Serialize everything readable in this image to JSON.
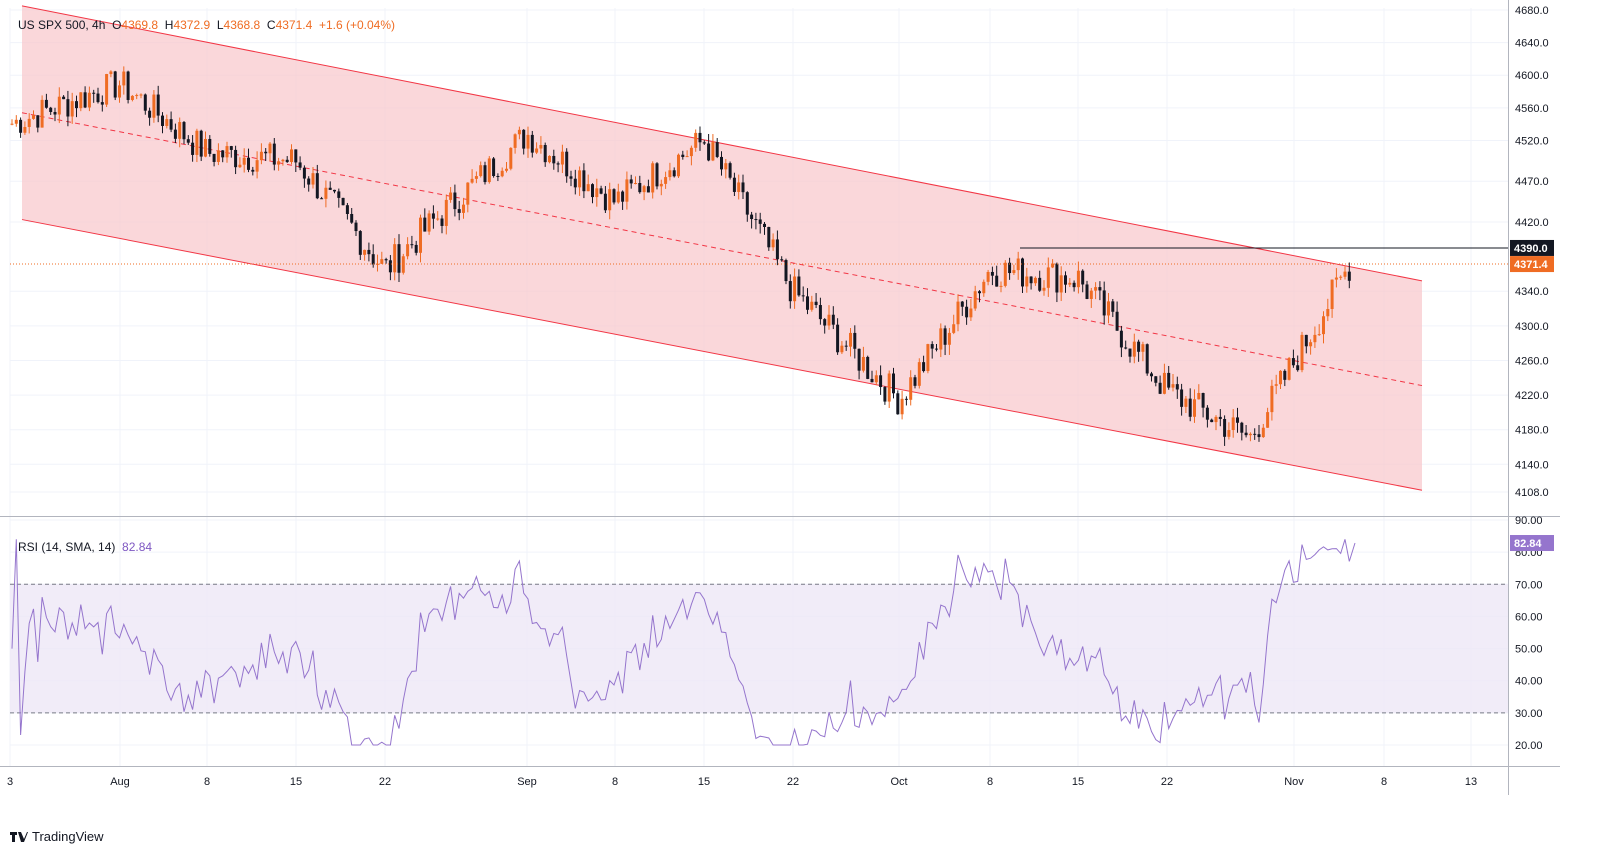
{
  "header": {
    "symbol": "US SPX 500, 4h",
    "open_label": "O",
    "open": "4369.8",
    "high_label": "H",
    "high": "4372.9",
    "low_label": "L",
    "low": "4368.8",
    "close_label": "C",
    "close": "4371.4",
    "change": "+1.6 (+0.04%)"
  },
  "rsi_header": {
    "label": "RSI (14, SMA, 14)",
    "value": "82.84"
  },
  "brand": {
    "name": "TradingView"
  },
  "colors": {
    "channel_fill": "#f8c9ce",
    "channel_line": "#f23645",
    "candle_up": "#ef6c23",
    "candle_down": "#131722",
    "rsi_line": "#9575cd",
    "rsi_band": "#ede7f6",
    "price_badge": "#ef6c23",
    "resistance_badge": "#131722"
  },
  "chart_data": [
    {
      "type": "candlestick",
      "title": "US SPX 500, 4h",
      "ylim": [
        4080,
        4680
      ],
      "y_ticks": [
        "4108.0",
        "4140.0",
        "4180.0",
        "4220.0",
        "4260.0",
        "4300.0",
        "4340.0",
        "4420.0",
        "4470.0",
        "4520.0",
        "4560.0",
        "4600.0",
        "4640.0",
        "4680.0"
      ],
      "x_ticks": [
        "3",
        "Aug",
        "8",
        "15",
        "22",
        "Sep",
        "8",
        "15",
        "22",
        "Oct",
        "8",
        "15",
        "22",
        "Nov",
        "8",
        "13"
      ],
      "badges": [
        {
          "value": "4390.0",
          "kind": "resistance"
        },
        {
          "value": "4371.4",
          "kind": "last"
        }
      ],
      "resistance": 4390.0,
      "last_price": 4371.4,
      "channel": {
        "upper_start": 4685,
        "upper_end": 4352,
        "lower_start": 4423,
        "lower_end": 4110,
        "x_start": "3",
        "x_end": "8"
      },
      "close_path": [
        [
          "3",
          4540
        ],
        [
          "Aug",
          4590
        ],
        [
          "8",
          4505
        ],
        [
          "15",
          4495
        ],
        [
          "22",
          4365
        ],
        [
          "Sep",
          4528
        ],
        [
          "8",
          4445
        ],
        [
          "15",
          4520
        ],
        [
          "22",
          4340
        ],
        [
          "Oct",
          4215
        ],
        [
          "8",
          4365
        ],
        [
          "15",
          4355
        ],
        [
          "22",
          4225
        ],
        [
          "Nov",
          4170
        ],
        [
          "Nov",
          4330
        ],
        [
          "Nov",
          4371.4
        ]
      ]
    },
    {
      "type": "line",
      "title": "RSI (14, SMA, 14)",
      "ylim": [
        15,
        90
      ],
      "y_ticks": [
        "20.00",
        "30.00",
        "40.00",
        "50.00",
        "60.00",
        "70.00",
        "80.00",
        "90.00"
      ],
      "bands": [
        30,
        70
      ],
      "badge": "82.84",
      "last_value": 82.84
    }
  ]
}
